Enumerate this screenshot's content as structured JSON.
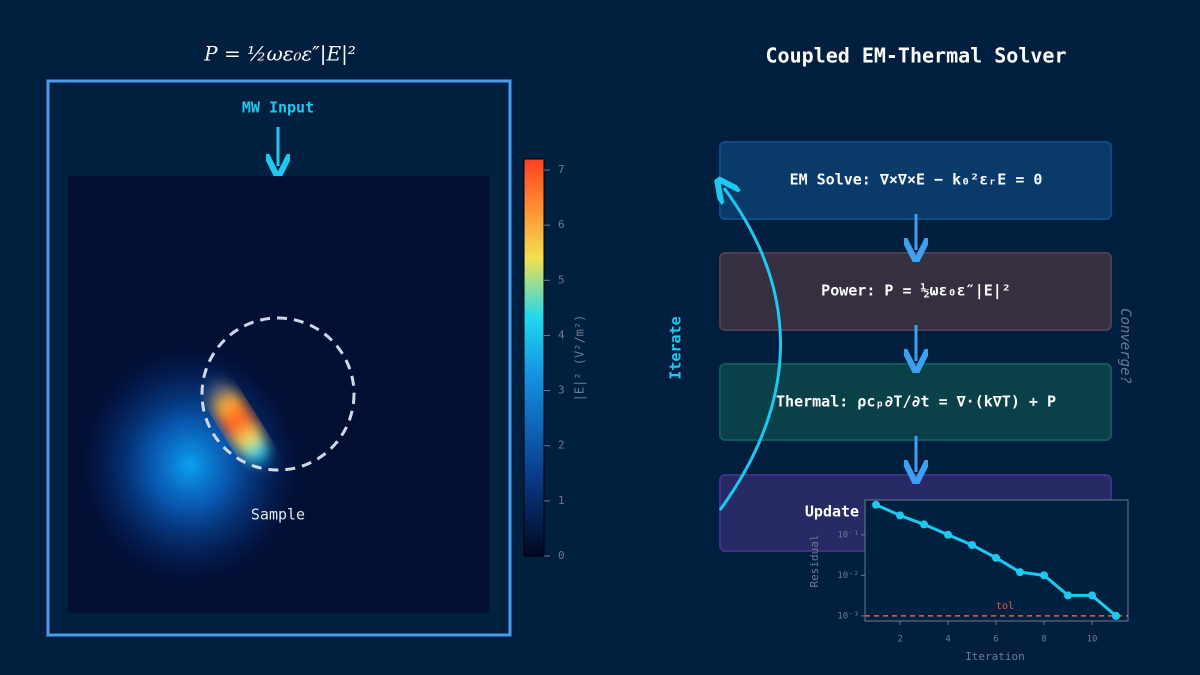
{
  "field_panel": {
    "title": "P = ½ωε₀ε″|E|²",
    "input_label": "MW Input",
    "sample_label": "Sample"
  },
  "colorbar": {
    "label": "|E|² (V²/m²)",
    "lim": [
      0,
      7.2
    ],
    "ticks": [
      0,
      1,
      2,
      3,
      4,
      5,
      6,
      7
    ]
  },
  "solver": {
    "title": "Coupled EM-Thermal Solver",
    "steps": [
      "EM Solve: ∇×∇×E − k₀²εᵣE = 0",
      "Power:  P = ½ωε₀ε″|E|²",
      "Thermal: ρcₚ∂T/∂t = ∇·(k∇T) + P",
      "Update"
    ],
    "loop_label": "Iterate",
    "converge_label": "Converge?"
  },
  "chart_data": {
    "type": "line",
    "xlabel": "Iteration",
    "ylabel": "Residual",
    "log_y": true,
    "x": [
      1,
      2,
      3,
      4,
      5,
      6,
      7,
      8,
      9,
      10,
      11
    ],
    "series": [
      {
        "name": "Residual",
        "color": "#1ec8f0",
        "values": [
          0.55,
          0.3,
          0.18,
          0.1,
          0.056,
          0.027,
          0.012,
          0.01,
          0.0032,
          0.0032,
          0.001
        ]
      }
    ],
    "xlim": [
      0.54,
      11.5
    ],
    "ylim": [
      0.00075,
      0.72
    ],
    "xticks": [
      2,
      4,
      6,
      8,
      10
    ],
    "yticks": [
      {
        "value": 0.001,
        "label": "10⁻³"
      },
      {
        "value": 0.01,
        "label": "10⁻²"
      },
      {
        "value": 0.1,
        "label": "10⁻¹"
      }
    ],
    "threshold": {
      "label": "tol",
      "value": 0.001,
      "color": "#e0604a"
    }
  }
}
